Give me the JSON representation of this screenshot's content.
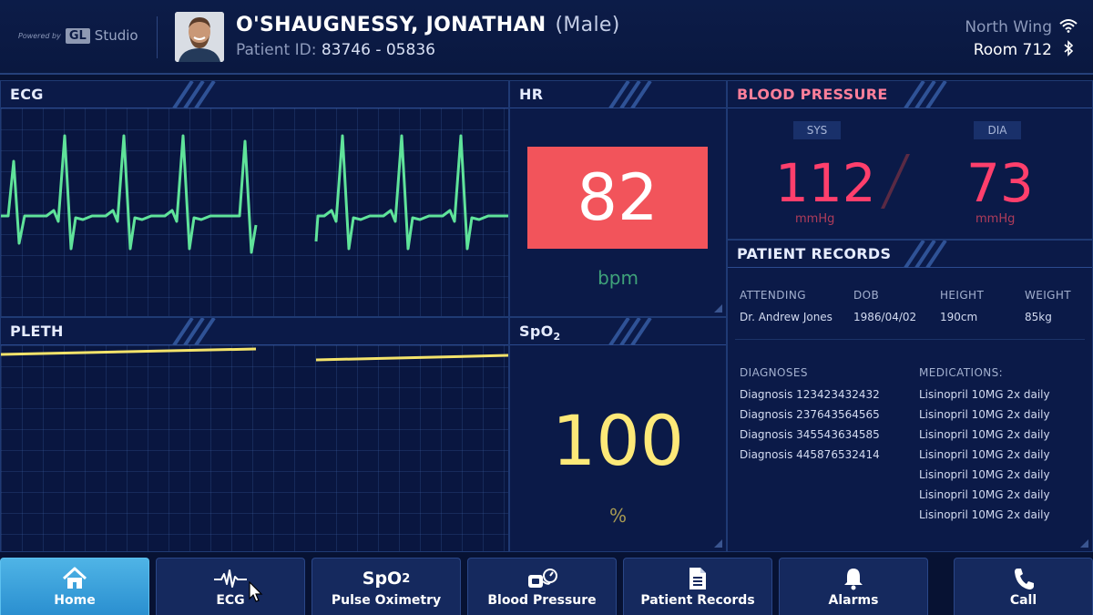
{
  "header": {
    "powered_by": "Powered by",
    "brand_gl": "GL",
    "brand_studio": "Studio",
    "patient_name": "O'SHAUGNESSY, JONATHAN",
    "patient_sex": "(Male)",
    "patient_id_label": "Patient ID:",
    "patient_id_value": "83746 - 05836",
    "location_wing": "North Wing",
    "location_room": "Room 712"
  },
  "panels": {
    "ecg": {
      "title": "ECG",
      "trace_color": "#5fe39a"
    },
    "hr": {
      "title": "HR",
      "value": "82",
      "unit": "bpm",
      "alarm_color": "#f2545b"
    },
    "pleth": {
      "title": "PLETH",
      "trace_color": "#f4e36a"
    },
    "spo2": {
      "title_main": "SpO",
      "title_sub": "2",
      "value": "100",
      "unit": "%",
      "value_color": "#fde978"
    },
    "blood_pressure": {
      "title": "BLOOD PRESSURE",
      "sys_label": "SYS",
      "sys_value": "112",
      "sys_unit": "mmHg",
      "dia_label": "DIA",
      "dia_value": "73",
      "dia_unit": "mmHg",
      "value_color": "#ff3f6c"
    },
    "patient_records": {
      "title": "PATIENT RECORDS",
      "attending_label": "ATTENDING",
      "attending_value": "Dr. Andrew Jones",
      "dob_label": "DOB",
      "dob_value": "1986/04/02",
      "height_label": "HEIGHT",
      "height_value": "190cm",
      "weight_label": "WEIGHT",
      "weight_value": "85kg",
      "diagnoses_label": "DIAGNOSES",
      "diagnoses": [
        "Diagnosis 123423432432",
        "Diagnosis 237643564565",
        "Diagnosis 345543634585",
        "Diagnosis 445876532414"
      ],
      "medications_label": "MEDICATIONS:",
      "medications": [
        "Lisinopril 10MG 2x daily",
        "Lisinopril 10MG 2x daily",
        "Lisinopril 10MG 2x daily",
        "Lisinopril 10MG 2x daily",
        "Lisinopril 10MG 2x daily",
        "Lisinopril 10MG 2x daily",
        "Lisinopril 10MG 2x daily"
      ]
    }
  },
  "nav": {
    "home": "Home",
    "ecg": "ECG",
    "spo2_icon_main": "SpO",
    "spo2_icon_sub": "2",
    "pulse_oximetry": "Pulse Oximetry",
    "blood_pressure": "Blood Pressure",
    "patient_records": "Patient Records",
    "alarms": "Alarms",
    "call": "Call"
  },
  "icons": [
    "wifi-icon",
    "bluetooth-icon",
    "home-icon",
    "ecg-wave-icon",
    "blood-pressure-cuff-icon",
    "document-icon",
    "bell-icon",
    "phone-icon",
    "mouse-cursor-icon"
  ],
  "colors": {
    "background": "#071233",
    "panel": "#0b1a48",
    "accent_active": "#3fa6e0"
  }
}
